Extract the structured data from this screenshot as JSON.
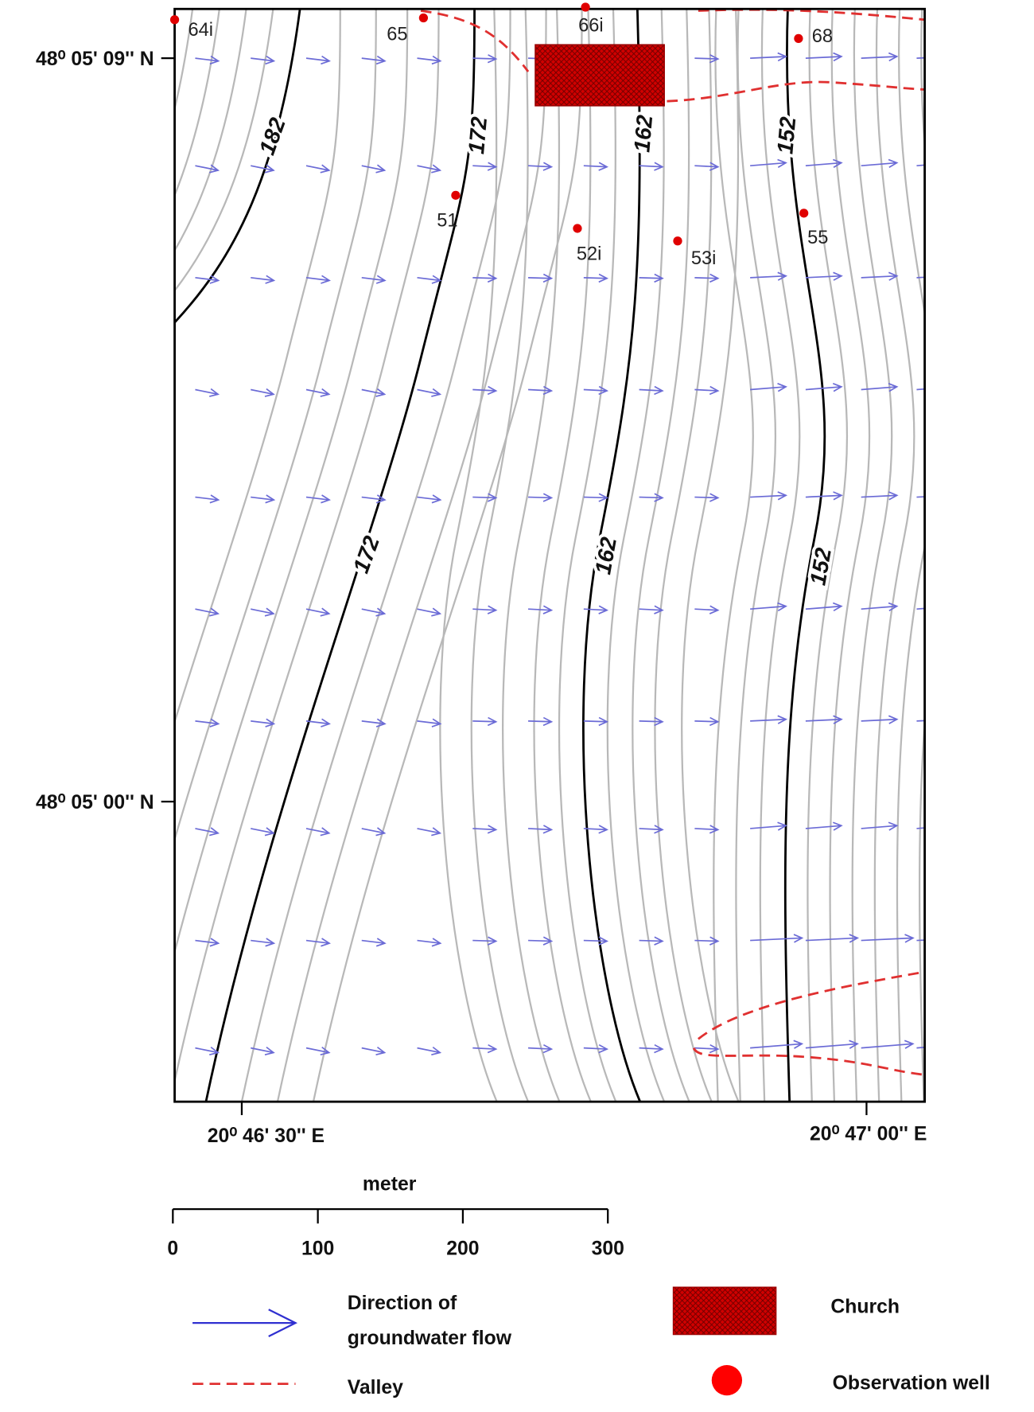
{
  "map": {
    "lat_labels": [
      "48⁰ 05' 09'' N",
      "48⁰ 05' 00'' N"
    ],
    "lon_labels": [
      "20⁰ 46' 30'' E",
      "20⁰ 47' 00'' E"
    ],
    "contour_labels": [
      "182",
      "172",
      "162",
      "152",
      "172",
      "162",
      "152"
    ],
    "wells": [
      "64i",
      "65",
      "66i",
      "68",
      "51",
      "52i",
      "53i",
      "55"
    ]
  },
  "scale_bar": {
    "unit": "meter",
    "ticks": [
      0,
      100,
      200,
      300
    ]
  },
  "legend": {
    "flow": [
      "Direction of",
      "groundwater flow"
    ],
    "valley": "Valley",
    "church": "Church",
    "well": "Observation well"
  }
}
